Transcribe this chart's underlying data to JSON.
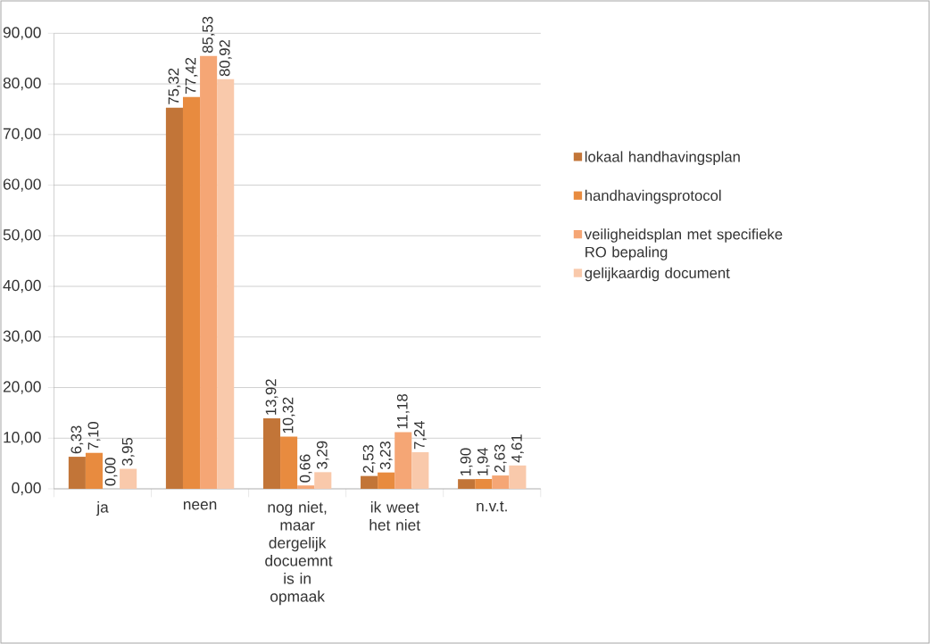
{
  "chart_data": {
    "type": "bar",
    "categories": [
      "ja",
      "neen",
      "nog niet, maar dergelijk docuemnt is in opmaak",
      "ik weet het niet",
      "n.v.t."
    ],
    "series": [
      {
        "name": "lokaal handhavingsplan",
        "color": "#c27538",
        "values": [
          6.33,
          75.32,
          13.92,
          2.53,
          1.9
        ],
        "value_labels": [
          "6,33",
          "75,32",
          "13,92",
          "2,53",
          "1,90"
        ]
      },
      {
        "name": "handhavingsprotocol",
        "color": "#e88b3f",
        "values": [
          7.1,
          77.42,
          10.32,
          3.23,
          1.94
        ],
        "value_labels": [
          "7,10",
          "77,42",
          "10,32",
          "3,23",
          "1,94"
        ]
      },
      {
        "name": "veiligheidsplan met specifieke RO bepaling",
        "color": "#f5a675",
        "values": [
          0.0,
          85.53,
          0.66,
          11.18,
          2.63
        ],
        "value_labels": [
          "0,00",
          "85,53",
          "0,66",
          "11,18",
          "2,63"
        ]
      },
      {
        "name": "gelijkaardig document",
        "color": "#f9c9ab",
        "values": [
          3.95,
          80.92,
          3.29,
          7.24,
          4.61
        ],
        "value_labels": [
          "3,95",
          "80,92",
          "3,29",
          "7,24",
          "4,61"
        ]
      }
    ],
    "ylim": [
      0,
      90
    ],
    "yticks": [
      {
        "value": 0,
        "label": "0,00"
      },
      {
        "value": 10,
        "label": "10,00"
      },
      {
        "value": 20,
        "label": "20,00"
      },
      {
        "value": 30,
        "label": "30,00"
      },
      {
        "value": 40,
        "label": "40,00"
      },
      {
        "value": 50,
        "label": "50,00"
      },
      {
        "value": 60,
        "label": "60,00"
      },
      {
        "value": 70,
        "label": "70,00"
      },
      {
        "value": 80,
        "label": "80,00"
      },
      {
        "value": 90,
        "label": "90,00"
      }
    ],
    "grid": "y",
    "legend": "right"
  }
}
